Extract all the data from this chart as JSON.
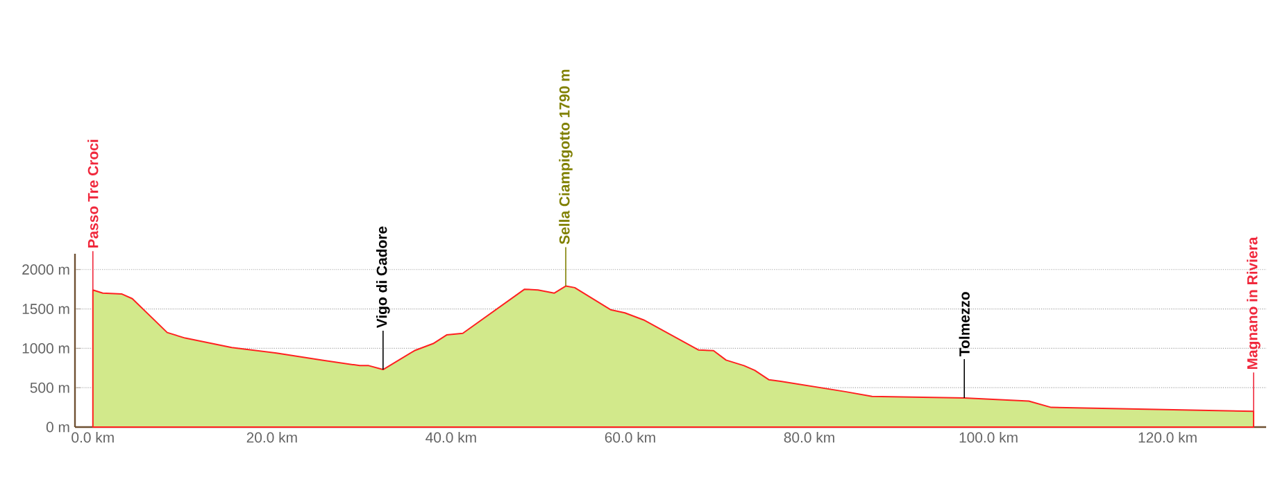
{
  "chart_data": {
    "type": "area",
    "x": [
      0,
      1.1,
      3.2,
      4.4,
      8.3,
      10.3,
      15.5,
      20.5,
      25.6,
      29.8,
      30.8,
      32.4,
      35.9,
      38,
      39.5,
      41.3,
      48.2,
      49.7,
      51.5,
      52.8,
      53.8,
      57.8,
      59.4,
      61.5,
      67.6,
      69.3,
      70.7,
      72.7,
      73.9,
      75.5,
      76.8,
      84,
      87,
      97.3,
      104.5,
      107,
      129.6
    ],
    "series": [
      {
        "color": "#d2e98b",
        "values": [
          1740,
          1700,
          1690,
          1630,
          1200,
          1130,
          1010,
          940,
          850,
          780,
          780,
          730,
          970,
          1060,
          1170,
          1190,
          1750,
          1740,
          1700,
          1790,
          1770,
          1490,
          1450,
          1360,
          980,
          970,
          850,
          780,
          720,
          600,
          580,
          450,
          390,
          370,
          330,
          250,
          200
        ]
      }
    ],
    "xlim": [
      -2,
      131
    ],
    "ylim": [
      0,
      2200
    ],
    "xticks": [
      {
        "value": 0,
        "label": "0.0 km"
      },
      {
        "value": 20,
        "label": "20.0 km"
      },
      {
        "value": 40,
        "label": "40.0 km"
      },
      {
        "value": 60,
        "label": "60.0 km"
      },
      {
        "value": 80,
        "label": "80.0 km"
      },
      {
        "value": 100,
        "label": "100.0 km"
      },
      {
        "value": 120,
        "label": "120.0 km"
      }
    ],
    "yticks": [
      {
        "value": 0,
        "label": "0 m"
      },
      {
        "value": 500,
        "label": "500 m"
      },
      {
        "value": 1000,
        "label": "1000 m"
      },
      {
        "value": 1500,
        "label": "1500 m"
      },
      {
        "value": 2000,
        "label": "2000 m"
      }
    ],
    "grid": "y",
    "annotations": [
      {
        "text": "Passo Tre Croci",
        "x": 0,
        "y": 1740
      },
      {
        "text": "Vigo di Cadore",
        "x": 32.4,
        "y": 730
      },
      {
        "text": "Sella Ciampigotto 1790 m",
        "x": 52.8,
        "y": 1790
      },
      {
        "text": "Tolmezzo",
        "x": 97.3,
        "y": 370
      },
      {
        "text": "Magnano in Riviera",
        "x": 129.6,
        "y": 200
      }
    ]
  }
}
